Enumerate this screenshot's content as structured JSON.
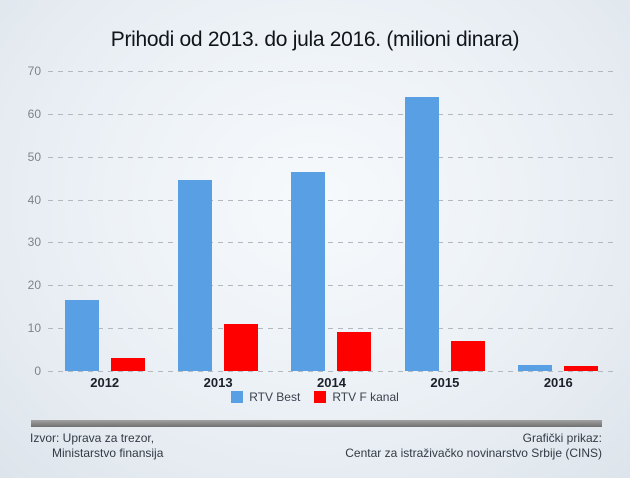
{
  "title": "Prihodi od 2013. do jula 2016. (milioni dinara)",
  "chart_data": {
    "type": "bar",
    "title": "Prihodi od 2013. do jula 2016. (milioni dinara)",
    "categories": [
      "2012",
      "2013",
      "2014",
      "2015",
      "2016"
    ],
    "series": [
      {
        "name": "RTV Best",
        "color": "#58A0E3",
        "values": [
          16.5,
          44.5,
          46.5,
          64,
          1.3
        ]
      },
      {
        "name": "RTV F kanal",
        "color": "#FF0000",
        "values": [
          3,
          11,
          9,
          7,
          1.2
        ]
      }
    ],
    "xlabel": "",
    "ylabel": "",
    "ylim": [
      0,
      70
    ],
    "yticks": [
      0,
      10,
      20,
      30,
      40,
      50,
      60,
      70
    ],
    "grid": "horizontal dashed",
    "legend_position": "bottom center"
  },
  "footer": {
    "source_line1": "Izvor: Uprava za trezor,",
    "source_line2": "Ministarstvo finansija",
    "credit_line1": "Grafički prikaz:",
    "credit_line2": "Centar za istraživačko novinarstvo Srbije (CINS)"
  },
  "colors": {
    "series_rtv_best": "#58A0E3",
    "series_rtv_f_kanal": "#FF0000",
    "gridline": "#b2b8c0",
    "axis_tick_text": "#7d838d",
    "category_text": "#1b212b",
    "title_text": "#10141b",
    "footer_text": "#333a45",
    "divider": "#8b8b8b",
    "background_edge": "#dde4eb",
    "background_center": "#f7fafc"
  }
}
